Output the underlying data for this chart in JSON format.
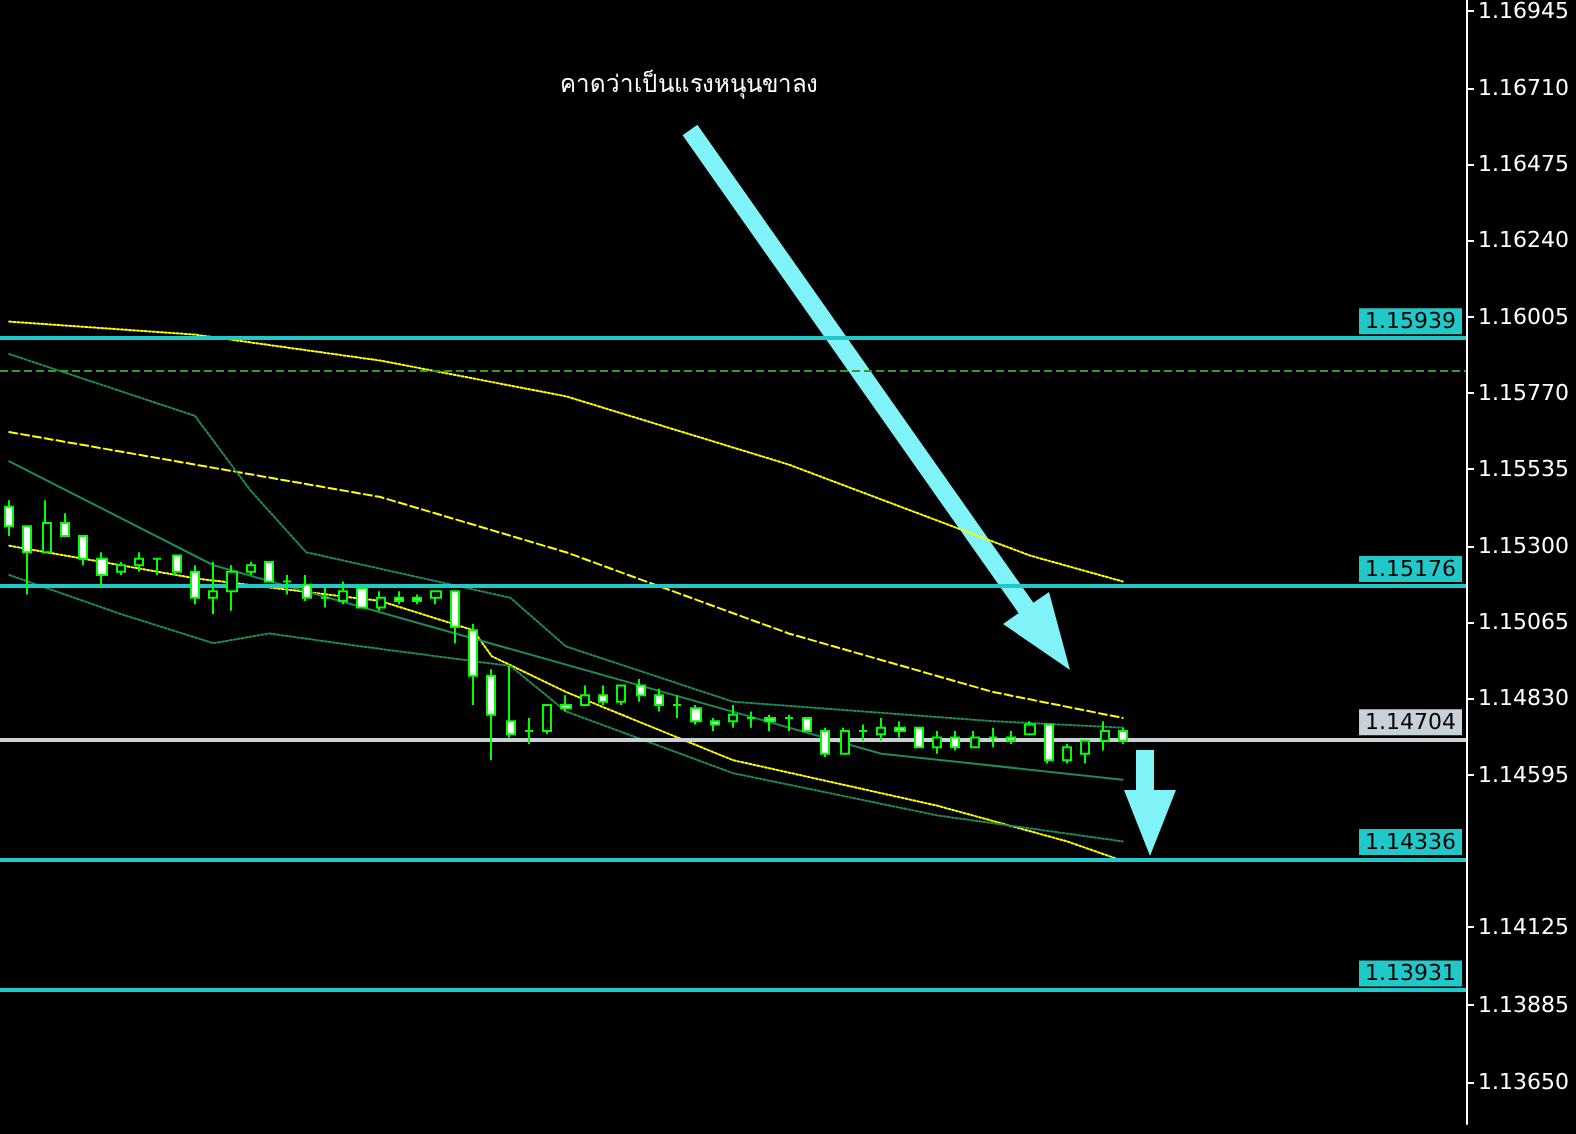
{
  "chart_data": {
    "type": "candlestick",
    "annotations": [
      "คาดว่าเป็นแรงหนุนขาลง"
    ],
    "categories": [
      null,
      null,
      null,
      null,
      null,
      null,
      null,
      null,
      null,
      null,
      null,
      null,
      null,
      null,
      null,
      null,
      null,
      null,
      null,
      null,
      null,
      null,
      null,
      null,
      null,
      null,
      null,
      null,
      null,
      null,
      null,
      null,
      null,
      null,
      null,
      null,
      null,
      null,
      null,
      null,
      null,
      null,
      null,
      null,
      null,
      null,
      null,
      null,
      null,
      null,
      null,
      null,
      null,
      null,
      null,
      null,
      null,
      null,
      null,
      null,
      null,
      null,
      null,
      null,
      null,
      null,
      null,
      null,
      null,
      null,
      null,
      null,
      null,
      null,
      null,
      null,
      null,
      null,
      null
    ],
    "color": "#00ff00",
    "ohlc": [
      [
        1.1542,
        1.1544,
        1.1533,
        1.1536
      ],
      [
        1.1536,
        1.1536,
        1.1515,
        1.1528
      ],
      [
        1.1528,
        1.1544,
        1.1528,
        1.1537
      ],
      [
        1.1537,
        1.154,
        1.1533,
        1.1533
      ],
      [
        1.1533,
        1.1533,
        1.1524,
        1.1526
      ],
      [
        1.1526,
        1.1528,
        1.1517,
        1.1521
      ],
      [
        1.1522,
        1.1525,
        1.1521,
        1.1524
      ],
      [
        1.1524,
        1.1528,
        1.1522,
        1.1526
      ],
      [
        1.1526,
        1.1526,
        1.1521,
        1.1526
      ],
      [
        1.1527,
        1.1527,
        1.1521,
        1.1522
      ],
      [
        1.1522,
        1.1524,
        1.1512,
        1.1514
      ],
      [
        1.1514,
        1.1525,
        1.1509,
        1.1516
      ],
      [
        1.1516,
        1.1524,
        1.151,
        1.1522
      ],
      [
        1.1522,
        1.1525,
        1.1521,
        1.1524
      ],
      [
        1.1525,
        1.1525,
        1.1519,
        1.1519
      ],
      [
        1.1519,
        1.1521,
        1.1515,
        1.1519
      ],
      [
        1.1518,
        1.1521,
        1.1513,
        1.1514
      ],
      [
        1.1514,
        1.1517,
        1.1511,
        1.1514
      ],
      [
        1.1513,
        1.1519,
        1.1512,
        1.1516
      ],
      [
        1.1517,
        1.1518,
        1.1511,
        1.1511
      ],
      [
        1.1511,
        1.1516,
        1.151,
        1.1514
      ],
      [
        1.1514,
        1.1516,
        1.1512,
        1.1513
      ],
      [
        1.1514,
        1.1515,
        1.1512,
        1.1513
      ],
      [
        1.1514,
        1.1516,
        1.1512,
        1.1516
      ],
      [
        1.1516,
        1.1516,
        1.15,
        1.1505
      ],
      [
        1.1504,
        1.1506,
        1.1481,
        1.149
      ],
      [
        1.149,
        1.1492,
        1.1464,
        1.1478
      ],
      [
        1.1476,
        1.1493,
        1.1471,
        1.1472
      ],
      [
        1.1473,
        1.1477,
        1.1469,
        1.1473
      ],
      [
        1.1473,
        1.1481,
        1.1472,
        1.1481
      ],
      [
        1.1481,
        1.1484,
        1.1479,
        1.148
      ],
      [
        1.1481,
        1.1487,
        1.1481,
        1.1484
      ],
      [
        1.1484,
        1.1487,
        1.1481,
        1.1482
      ],
      [
        1.1482,
        1.1487,
        1.1481,
        1.1487
      ],
      [
        1.1487,
        1.1489,
        1.1482,
        1.1484
      ],
      [
        1.1484,
        1.1486,
        1.1479,
        1.1481
      ],
      [
        1.1481,
        1.1484,
        1.1477,
        1.1481
      ],
      [
        1.148,
        1.1481,
        1.1475,
        1.1476
      ],
      [
        1.1476,
        1.1477,
        1.1473,
        1.1475
      ],
      [
        1.1476,
        1.1481,
        1.1474,
        1.1478
      ],
      [
        1.1477,
        1.1479,
        1.1474,
        1.1477
      ],
      [
        1.1477,
        1.1478,
        1.1473,
        1.1476
      ],
      [
        1.1477,
        1.1478,
        1.1473,
        1.1477
      ],
      [
        1.1477,
        1.1477,
        1.1473,
        1.1473
      ],
      [
        1.1473,
        1.1474,
        1.1465,
        1.1466
      ],
      [
        1.1466,
        1.1474,
        1.1466,
        1.1473
      ],
      [
        1.1473,
        1.1475,
        1.147,
        1.1473
      ],
      [
        1.1472,
        1.1477,
        1.147,
        1.1474
      ],
      [
        1.1474,
        1.1476,
        1.1471,
        1.1473
      ],
      [
        1.1474,
        1.1474,
        1.1468,
        1.1468
      ],
      [
        1.1468,
        1.1473,
        1.1466,
        1.1471
      ],
      [
        1.1471,
        1.1473,
        1.1467,
        1.1468
      ],
      [
        1.1468,
        1.1473,
        1.1468,
        1.1471
      ],
      [
        1.1471,
        1.1474,
        1.1468,
        1.1471
      ],
      [
        1.1471,
        1.1473,
        1.1469,
        1.147
      ],
      [
        1.1472,
        1.1476,
        1.1472,
        1.1475
      ],
      [
        1.1475,
        1.1475,
        1.1463,
        1.1464
      ],
      [
        1.1464,
        1.1469,
        1.1463,
        1.1468
      ],
      [
        1.1466,
        1.147,
        1.1463,
        1.147
      ],
      [
        1.147,
        1.1476,
        1.1467,
        1.1473
      ],
      [
        1.1473,
        1.1474,
        1.1469,
        1.147
      ],
      null,
      null,
      null,
      null,
      null,
      null,
      null,
      null,
      null,
      null,
      null,
      null,
      null,
      null,
      null,
      null,
      null,
      null
    ],
    "series": [
      {
        "type": "line",
        "color": "#ffff00",
        "line_style": "dashed",
        "values": [
          1.1565,
          null,
          null,
          null,
          null,
          null,
          null,
          null,
          null,
          null,
          1.1555,
          null,
          null,
          null,
          null,
          null,
          null,
          null,
          null,
          null,
          1.1545,
          null,
          null,
          null,
          null,
          null,
          null,
          null,
          null,
          null,
          1.1528,
          null,
          null,
          null,
          null,
          null,
          null,
          null,
          null,
          null,
          null,
          null,
          1.1503,
          null,
          null,
          null,
          null,
          null,
          null,
          null,
          null,
          null,
          null,
          1.1485,
          null,
          null,
          null,
          null,
          null,
          null,
          1.1477,
          null,
          null,
          null,
          null,
          null,
          null,
          null,
          null,
          null,
          null,
          null,
          null,
          null,
          null,
          null,
          null,
          null,
          null
        ]
      },
      {
        "type": "line",
        "color": "#ffff00",
        "line_style": "dotted",
        "values": [
          1.1599,
          null,
          null,
          null,
          null,
          null,
          null,
          null,
          null,
          null,
          1.1595,
          null,
          null,
          null,
          null,
          null,
          null,
          null,
          null,
          null,
          1.1587,
          null,
          null,
          null,
          null,
          null,
          null,
          null,
          null,
          null,
          1.1576,
          null,
          null,
          null,
          null,
          null,
          null,
          null,
          null,
          null,
          null,
          null,
          1.1555,
          null,
          null,
          null,
          null,
          null,
          null,
          null,
          null,
          null,
          null,
          null,
          null,
          1.1527,
          null,
          null,
          null,
          null,
          1.1519,
          null,
          null,
          null,
          null,
          null,
          null,
          null,
          null,
          null,
          null,
          null,
          null,
          null,
          null,
          null,
          null,
          null,
          null
        ]
      },
      {
        "type": "line",
        "color": "#ffff00",
        "line_style": "dotted",
        "values": [
          1.153,
          null,
          null,
          null,
          null,
          null,
          null,
          null,
          null,
          null,
          1.152,
          null,
          null,
          null,
          null,
          null,
          null,
          null,
          null,
          null,
          1.1513,
          null,
          null,
          null,
          null,
          1.1504,
          1.1496,
          null,
          null,
          null,
          1.1485,
          null,
          null,
          null,
          null,
          null,
          null,
          null,
          null,
          1.1464,
          null,
          null,
          null,
          null,
          null,
          null,
          null,
          null,
          null,
          null,
          1.145,
          null,
          null,
          null,
          null,
          null,
          null,
          1.1439,
          null,
          null,
          1.1433,
          null,
          null,
          null,
          null,
          null,
          null,
          null,
          null,
          null,
          null,
          null,
          null,
          null,
          null,
          null,
          null,
          null,
          null
        ]
      },
      {
        "type": "line",
        "color": "#1f8a55",
        "line_style": "dotted",
        "values": [
          1.1589,
          null,
          null,
          null,
          null,
          null,
          null,
          null,
          null,
          null,
          1.157,
          null,
          null,
          1.1547,
          null,
          null,
          1.1528,
          null,
          null,
          null,
          null,
          null,
          null,
          null,
          null,
          null,
          null,
          1.1514,
          null,
          null,
          1.1499,
          null,
          null,
          null,
          null,
          null,
          null,
          null,
          null,
          1.1482,
          null,
          null,
          null,
          null,
          null,
          null,
          null,
          null,
          null,
          null,
          null,
          null,
          null,
          1.1476,
          null,
          null,
          null,
          null,
          null,
          null,
          1.1474,
          null,
          null,
          null,
          null,
          null,
          null,
          null,
          null,
          null,
          null,
          null,
          null,
          null,
          null,
          null,
          null,
          null,
          null
        ]
      },
      {
        "type": "line",
        "color": "#1f8a55",
        "line_style": "dotted",
        "values": [
          1.1521,
          null,
          null,
          null,
          null,
          null,
          1.1509,
          null,
          null,
          null,
          null,
          1.15,
          null,
          null,
          1.1503,
          null,
          null,
          null,
          null,
          1.1499,
          null,
          null,
          null,
          null,
          null,
          null,
          null,
          1.1493,
          null,
          null,
          1.1479,
          null,
          null,
          null,
          null,
          null,
          null,
          null,
          null,
          1.146,
          null,
          null,
          null,
          null,
          null,
          null,
          null,
          null,
          null,
          null,
          1.1447,
          null,
          null,
          null,
          null,
          null,
          null,
          null,
          null,
          null,
          1.1439,
          null,
          null,
          null,
          null,
          null,
          null,
          null,
          null,
          null,
          null,
          null,
          null,
          null,
          null,
          null,
          null,
          null,
          null
        ]
      },
      {
        "type": "line",
        "color": "#1f8a55",
        "line_style": "solid",
        "values": [
          1.1556,
          null,
          null,
          null,
          null,
          null,
          null,
          null,
          null,
          null,
          null,
          1.1524,
          null,
          null,
          null,
          null,
          null,
          null,
          null,
          null,
          null,
          null,
          null,
          null,
          null,
          null,
          null,
          null,
          null,
          null,
          null,
          null,
          null,
          null,
          null,
          null,
          null,
          null,
          null,
          null,
          null,
          null,
          null,
          null,
          null,
          null,
          null,
          1.1466,
          null,
          null,
          null,
          null,
          null,
          null,
          null,
          null,
          null,
          null,
          null,
          null,
          1.1458,
          null,
          null,
          null,
          null,
          null,
          null,
          null,
          null,
          null,
          null,
          null,
          null,
          null,
          null,
          null,
          null,
          null,
          null
        ]
      }
    ],
    "marker": "none",
    "ylim": [
      1.1352,
      1.1698
    ],
    "yticks": [
      {
        "value": 1.1365,
        "label": "1.13650"
      },
      {
        "value": 1.13885,
        "label": "1.13885"
      },
      {
        "value": 1.14125,
        "label": "1.14125"
      },
      {
        "value": 1.14595,
        "label": "1.14595"
      },
      {
        "value": 1.1483,
        "label": "1.14830"
      },
      {
        "value": 1.15065,
        "label": "1.15065"
      },
      {
        "value": 1.153,
        "label": "1.15300"
      },
      {
        "value": 1.15535,
        "label": "1.15535"
      },
      {
        "value": 1.1577,
        "label": "1.15770"
      },
      {
        "value": 1.16005,
        "label": "1.16005"
      },
      {
        "value": 1.1624,
        "label": "1.16240"
      },
      {
        "value": 1.16475,
        "label": "1.16475"
      },
      {
        "value": 1.1671,
        "label": "1.16710"
      },
      {
        "value": 1.16945,
        "label": "1.16945"
      }
    ],
    "tick_labels": "y",
    "ref_lines": [
      {
        "axis": "y",
        "value": 1.15939,
        "label": "1.15939",
        "color": "#22c8c8",
        "line_style": "solid"
      },
      {
        "axis": "y",
        "value": 1.15838,
        "label": null,
        "color": "#2e9e2e",
        "line_style": "dashed"
      },
      {
        "axis": "y",
        "value": 1.15176,
        "label": "1.15176",
        "color": "#22c8c8",
        "line_style": "solid"
      },
      {
        "axis": "y",
        "value": 1.14704,
        "label": "1.14704",
        "color": "#c8d0d8",
        "line_style": "solid"
      },
      {
        "axis": "y",
        "value": 1.14336,
        "label": "1.14336",
        "color": "#22c8c8",
        "line_style": "solid"
      },
      {
        "axis": "y",
        "value": 1.13931,
        "label": "1.13931",
        "color": "#22c8c8",
        "line_style": "solid"
      }
    ]
  }
}
